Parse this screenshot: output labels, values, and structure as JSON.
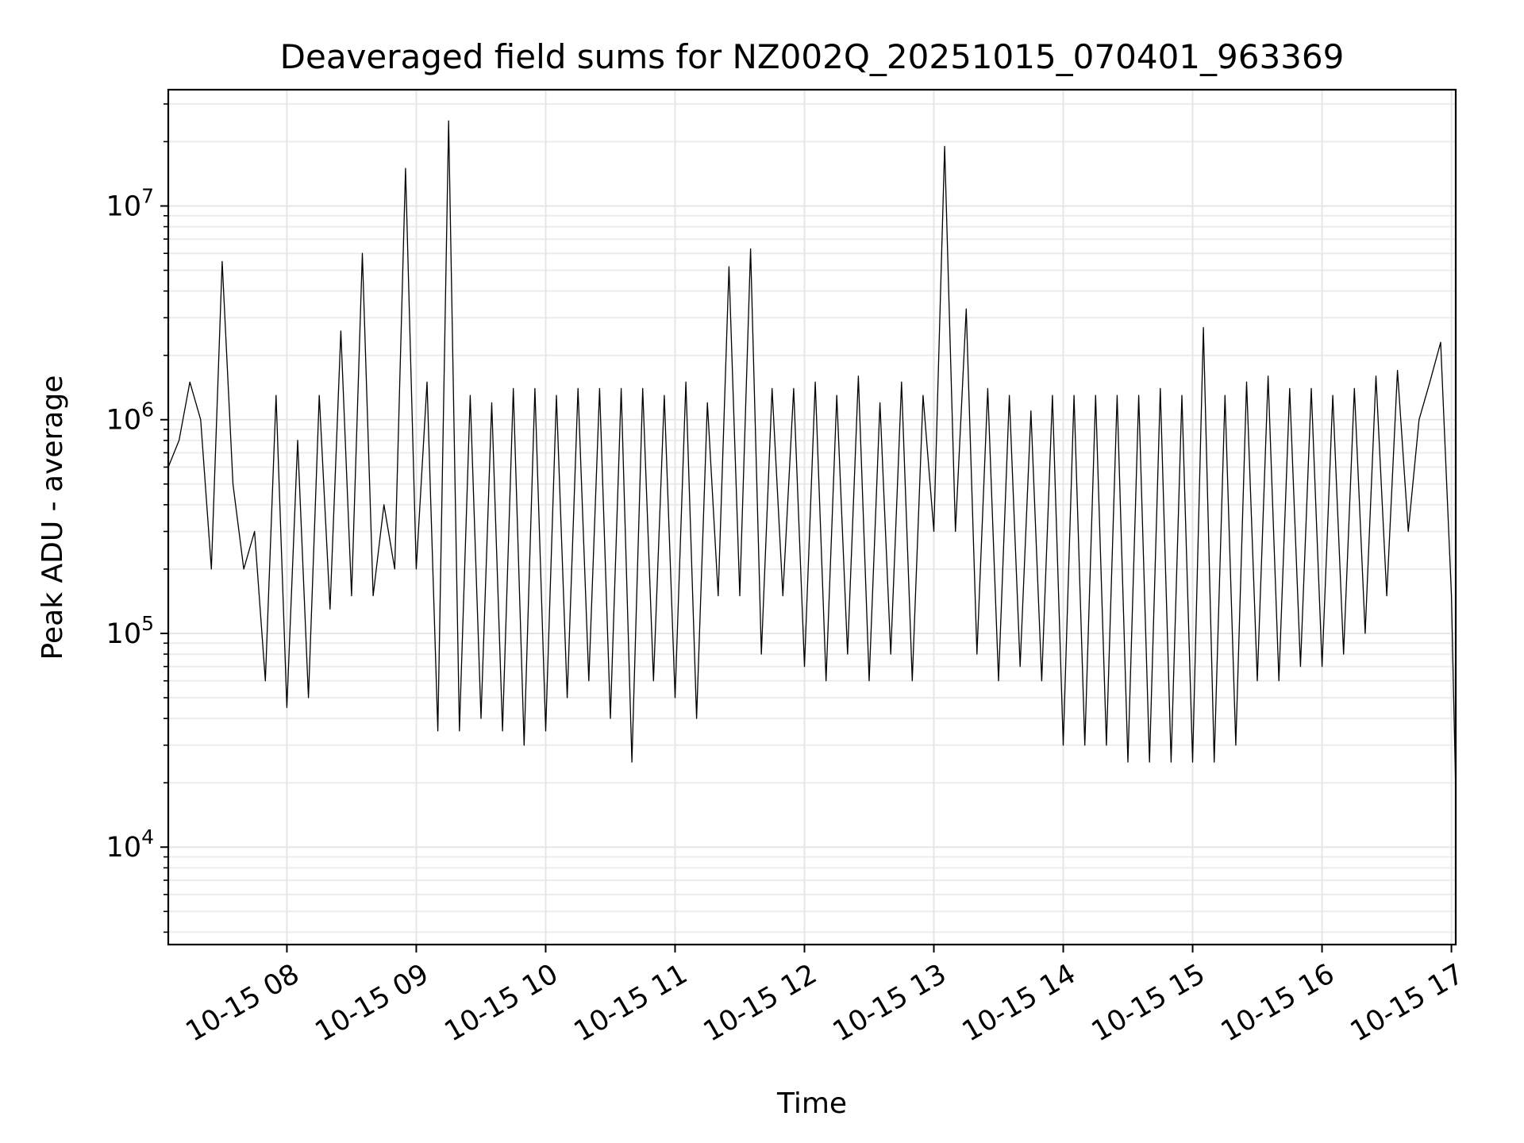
{
  "chart_data": {
    "type": "line",
    "title": "Deaveraged field sums for NZ002Q_20251015_070401_963369",
    "xlabel": "Time",
    "ylabel": "Peak ADU - average",
    "yscale": "log",
    "grid": true,
    "xlim": [
      "10-15 07:05",
      "10-15 17:02"
    ],
    "ylim": [
      3500,
      35000000
    ],
    "x_ticks": [
      "10-15 08",
      "10-15 09",
      "10-15 10",
      "10-15 11",
      "10-15 12",
      "10-15 13",
      "10-15 14",
      "10-15 15",
      "10-15 16",
      "10-15 17"
    ],
    "y_ticks": [
      {
        "value": 10000,
        "base": "10",
        "exp": "4"
      },
      {
        "value": 100000,
        "base": "10",
        "exp": "5"
      },
      {
        "value": 1000000,
        "base": "10",
        "exp": "6"
      },
      {
        "value": 10000000,
        "base": "10",
        "exp": "7"
      }
    ],
    "series": [
      {
        "color": "#000000",
        "x": [
          "10-15 07:05",
          "10-15 07:10",
          "10-15 07:15",
          "10-15 07:20",
          "10-15 07:25",
          "10-15 07:30",
          "10-15 07:35",
          "10-15 07:40",
          "10-15 07:45",
          "10-15 07:50",
          "10-15 07:55",
          "10-15 08:00",
          "10-15 08:05",
          "10-15 08:10",
          "10-15 08:15",
          "10-15 08:20",
          "10-15 08:25",
          "10-15 08:30",
          "10-15 08:35",
          "10-15 08:40",
          "10-15 08:45",
          "10-15 08:50",
          "10-15 08:55",
          "10-15 09:00",
          "10-15 09:05",
          "10-15 09:10",
          "10-15 09:15",
          "10-15 09:20",
          "10-15 09:25",
          "10-15 09:30",
          "10-15 09:35",
          "10-15 09:40",
          "10-15 09:45",
          "10-15 09:50",
          "10-15 09:55",
          "10-15 10:00",
          "10-15 10:05",
          "10-15 10:10",
          "10-15 10:15",
          "10-15 10:20",
          "10-15 10:25",
          "10-15 10:30",
          "10-15 10:35",
          "10-15 10:40",
          "10-15 10:45",
          "10-15 10:50",
          "10-15 10:55",
          "10-15 11:00",
          "10-15 11:05",
          "10-15 11:10",
          "10-15 11:15",
          "10-15 11:20",
          "10-15 11:25",
          "10-15 11:30",
          "10-15 11:35",
          "10-15 11:40",
          "10-15 11:45",
          "10-15 11:50",
          "10-15 11:55",
          "10-15 12:00",
          "10-15 12:05",
          "10-15 12:10",
          "10-15 12:15",
          "10-15 12:20",
          "10-15 12:25",
          "10-15 12:30",
          "10-15 12:35",
          "10-15 12:40",
          "10-15 12:45",
          "10-15 12:50",
          "10-15 12:55",
          "10-15 13:00",
          "10-15 13:05",
          "10-15 13:10",
          "10-15 13:15",
          "10-15 13:20",
          "10-15 13:25",
          "10-15 13:30",
          "10-15 13:35",
          "10-15 13:40",
          "10-15 13:45",
          "10-15 13:50",
          "10-15 13:55",
          "10-15 14:00",
          "10-15 14:05",
          "10-15 14:10",
          "10-15 14:15",
          "10-15 14:20",
          "10-15 14:25",
          "10-15 14:30",
          "10-15 14:35",
          "10-15 14:40",
          "10-15 14:45",
          "10-15 14:50",
          "10-15 14:55",
          "10-15 15:00",
          "10-15 15:05",
          "10-15 15:10",
          "10-15 15:15",
          "10-15 15:20",
          "10-15 15:25",
          "10-15 15:30",
          "10-15 15:35",
          "10-15 15:40",
          "10-15 15:45",
          "10-15 15:50",
          "10-15 15:55",
          "10-15 16:00",
          "10-15 16:05",
          "10-15 16:10",
          "10-15 16:15",
          "10-15 16:20",
          "10-15 16:25",
          "10-15 16:30",
          "10-15 16:35",
          "10-15 16:40",
          "10-15 16:45",
          "10-15 16:50",
          "10-15 16:55",
          "10-15 17:00",
          "10-15 17:02"
        ],
        "y": [
          600000,
          800000,
          1500000,
          1000000,
          200000,
          5500000,
          500000,
          200000,
          300000,
          60000,
          1300000,
          45000,
          800000,
          50000,
          1300000,
          130000,
          2600000,
          150000,
          6000000,
          150000,
          400000,
          200000,
          15000000,
          200000,
          1500000,
          35000,
          25000000,
          35000,
          1300000,
          40000,
          1200000,
          35000,
          1400000,
          30000,
          1400000,
          35000,
          1300000,
          50000,
          1400000,
          60000,
          1400000,
          40000,
          1400000,
          25000,
          1400000,
          60000,
          1300000,
          50000,
          1500000,
          40000,
          1200000,
          150000,
          5200000,
          150000,
          6300000,
          80000,
          1400000,
          150000,
          1400000,
          70000,
          1500000,
          60000,
          1300000,
          80000,
          1600000,
          60000,
          1200000,
          80000,
          1500000,
          60000,
          1300000,
          300000,
          19000000,
          300000,
          3300000,
          80000,
          1400000,
          60000,
          1300000,
          70000,
          1100000,
          60000,
          1300000,
          30000,
          1300000,
          30000,
          1300000,
          30000,
          1300000,
          25000,
          1300000,
          25000,
          1400000,
          25000,
          1300000,
          25000,
          2700000,
          25000,
          1300000,
          30000,
          1500000,
          60000,
          1600000,
          60000,
          1400000,
          70000,
          1400000,
          70000,
          1300000,
          80000,
          1400000,
          100000,
          1600000,
          150000,
          1700000,
          300000,
          1000000,
          1500000,
          2300000,
          150000,
          18000
        ]
      }
    ]
  }
}
